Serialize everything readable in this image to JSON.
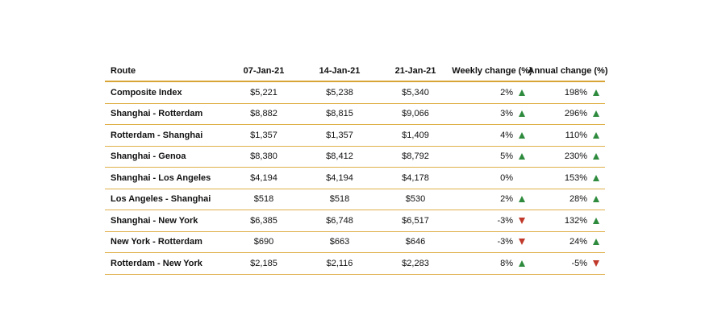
{
  "chart_data": {
    "type": "table",
    "columns": [
      "Route",
      "07-Jan-21",
      "14-Jan-21",
      "21-Jan-21",
      "Weekly change (%)",
      "Annual change (%)"
    ],
    "rows": [
      {
        "route": "Composite Index",
        "d1": "$5,221",
        "d2": "$5,238",
        "d3": "$5,340",
        "weekly": "2%",
        "weekly_dir": "up",
        "annual": "198%",
        "annual_dir": "up"
      },
      {
        "route": "Shanghai - Rotterdam",
        "d1": "$8,882",
        "d2": "$8,815",
        "d3": "$9,066",
        "weekly": "3%",
        "weekly_dir": "up",
        "annual": "296%",
        "annual_dir": "up"
      },
      {
        "route": "Rotterdam - Shanghai",
        "d1": "$1,357",
        "d2": "$1,357",
        "d3": "$1,409",
        "weekly": "4%",
        "weekly_dir": "up",
        "annual": "110%",
        "annual_dir": "up"
      },
      {
        "route": "Shanghai - Genoa",
        "d1": "$8,380",
        "d2": "$8,412",
        "d3": "$8,792",
        "weekly": "5%",
        "weekly_dir": "up",
        "annual": "230%",
        "annual_dir": "up"
      },
      {
        "route": "Shanghai - Los Angeles",
        "d1": "$4,194",
        "d2": "$4,194",
        "d3": "$4,178",
        "weekly": "0%",
        "weekly_dir": "none",
        "annual": "153%",
        "annual_dir": "up"
      },
      {
        "route": "Los Angeles - Shanghai",
        "d1": "$518",
        "d2": "$518",
        "d3": "$530",
        "weekly": "2%",
        "weekly_dir": "up",
        "annual": "28%",
        "annual_dir": "up"
      },
      {
        "route": "Shanghai - New York",
        "d1": "$6,385",
        "d2": "$6,748",
        "d3": "$6,517",
        "weekly": "-3%",
        "weekly_dir": "down",
        "annual": "132%",
        "annual_dir": "up"
      },
      {
        "route": "New York - Rotterdam",
        "d1": "$690",
        "d2": "$663",
        "d3": "$646",
        "weekly": "-3%",
        "weekly_dir": "down",
        "annual": "24%",
        "annual_dir": "up"
      },
      {
        "route": "Rotterdam - New York",
        "d1": "$2,185",
        "d2": "$2,116",
        "d3": "$2,283",
        "weekly": "8%",
        "weekly_dir": "up",
        "annual": "-5%",
        "annual_dir": "down"
      }
    ],
    "colors": {
      "up": "#2e8b3e",
      "down": "#c0392b",
      "rule": "#e0b04a"
    }
  }
}
